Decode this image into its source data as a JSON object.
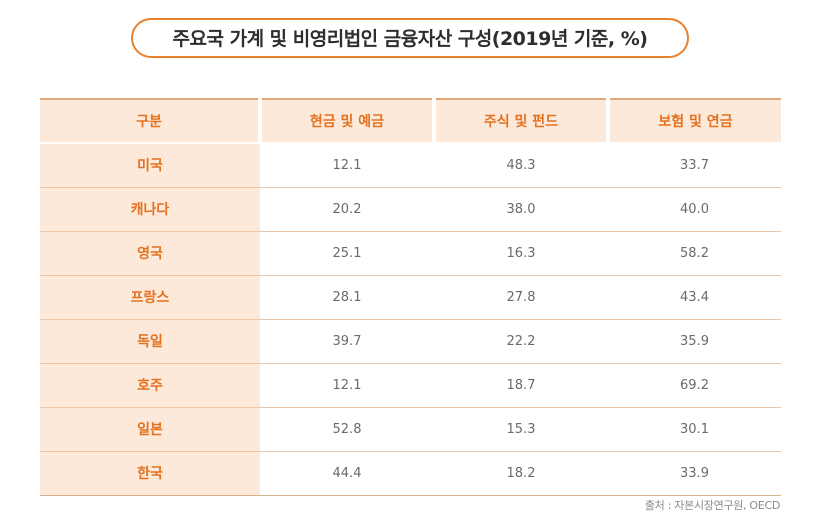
{
  "chart_data": {
    "type": "table",
    "title": "주요국 가계 및 비영리법인 금융자산 구성(2019년 기준, %)",
    "columns": [
      "구분",
      "현금 및 예금",
      "주식 및 펀드",
      "보험 및 연금"
    ],
    "rows": [
      {
        "label": "미국",
        "values": [
          "12.1",
          "48.3",
          "33.7"
        ]
      },
      {
        "label": "캐나다",
        "values": [
          "20.2",
          "38.0",
          "40.0"
        ]
      },
      {
        "label": "영국",
        "values": [
          "25.1",
          "16.3",
          "58.2"
        ]
      },
      {
        "label": "프랑스",
        "values": [
          "28.1",
          "27.8",
          "43.4"
        ]
      },
      {
        "label": "독일",
        "values": [
          "39.7",
          "22.2",
          "35.9"
        ]
      },
      {
        "label": "호주",
        "values": [
          "12.1",
          "18.7",
          "69.2"
        ]
      },
      {
        "label": "일본",
        "values": [
          "52.8",
          "15.3",
          "30.1"
        ]
      },
      {
        "label": "한국",
        "values": [
          "44.4",
          "18.2",
          "33.9"
        ]
      }
    ],
    "source": "출처 : 자본시장연구원, OECD"
  },
  "colors": {
    "accent": "#e3711f",
    "header_bg": "#fde9d9",
    "border": "#efc7a6",
    "title_border": "#e8812c"
  }
}
